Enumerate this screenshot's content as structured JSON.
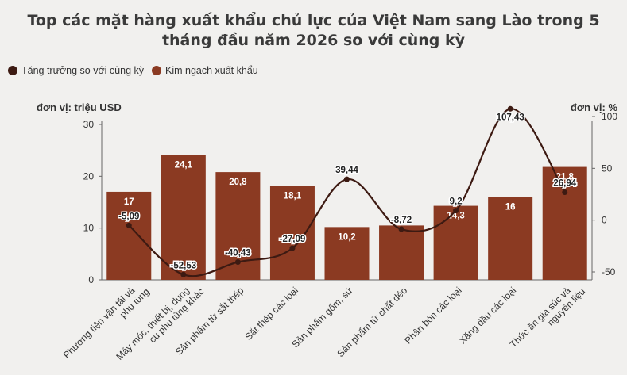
{
  "chart_data": {
    "type": "bar",
    "title": "Top các mặt hàng xuất khẩu chủ lực của Việt Nam sang Lào trong 5 tháng đầu năm 2026 so với cùng kỳ",
    "categories": [
      [
        "Phương tiện vận tải và",
        "phụ tùng"
      ],
      [
        "Máy móc, thiết bị, dụng",
        "cụ phụ tùng khác"
      ],
      [
        "Sản phẩm từ sắt thép"
      ],
      [
        "Sắt thép các loại"
      ],
      [
        "Sản phẩm gốm, sứ"
      ],
      [
        "Sản phẩm từ chất dẻo"
      ],
      [
        "Phân bón các loại"
      ],
      [
        "Xăng dầu các loại"
      ],
      [
        "Thức ăn gia súc và",
        "nguyên liệu"
      ]
    ],
    "series": [
      {
        "name": "Kim ngạch xuất khẩu",
        "kind": "bar",
        "axis": "left",
        "values": [
          17,
          24.1,
          20.8,
          18.1,
          10.2,
          10.5,
          14.3,
          16,
          21.8
        ],
        "labels": [
          "17",
          "24,1",
          "20,8",
          "18,1",
          "10,2",
          "",
          "14,3",
          "16",
          "21,8"
        ],
        "color": "#8b3a22"
      },
      {
        "name": "Tăng trưởng so với cùng kỳ",
        "kind": "line",
        "axis": "right",
        "values": [
          -5.09,
          -52.53,
          -40.43,
          -27.09,
          39.44,
          -8.72,
          9.2,
          107.43,
          26.94
        ],
        "labels": [
          "-5,09",
          "-52,53",
          "-40,43",
          "-27,09",
          "39,44",
          "-8,72",
          "9,2",
          "107,43",
          "26,94"
        ],
        "color": "#3d1a12"
      }
    ],
    "left_axis": {
      "label": "đơn vị: triệu USD",
      "min": 0,
      "max": 30,
      "ticks": [
        0,
        10,
        20,
        30
      ]
    },
    "right_axis": {
      "label": "đơn vị: %",
      "min": -50,
      "max": 100,
      "ticks": [
        -50,
        0,
        50,
        100
      ]
    },
    "legend_position": "top-left",
    "grid": false
  }
}
